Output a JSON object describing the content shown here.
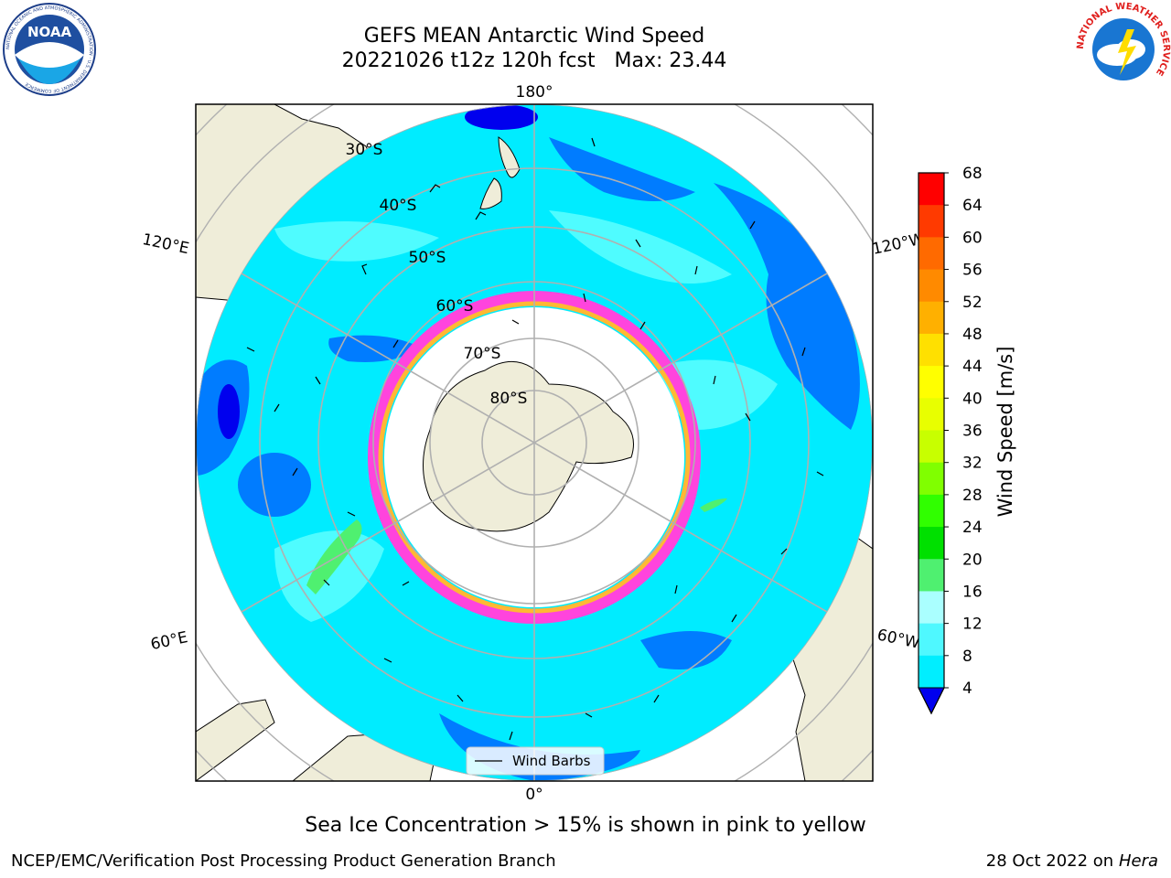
{
  "header": {
    "title_line1": "GEFS MEAN Antarctic Wind Speed",
    "title_line2": "20221026 t12z 120h fcst   Max: 23.44"
  },
  "logos": {
    "left": {
      "text": "NOAA",
      "ring_text": "NATIONAL OCEANIC AND ATMOSPHERIC ADMINISTRATION · U.S. DEPARTMENT OF COMMERCE"
    },
    "right": {
      "ring_text": "NATIONAL WEATHER SERVICE"
    }
  },
  "map": {
    "longitude_labels": {
      "top": "180°",
      "bottom": "0°",
      "left_upper": "120°E",
      "right_upper": "120°W",
      "left_lower": "60°E",
      "right_lower": "60°W"
    },
    "latitude_labels": [
      "30°S",
      "40°S",
      "50°S",
      "60°S",
      "70°S",
      "80°S"
    ],
    "legend_label": "Wind Barbs",
    "colors": {
      "land": "#efedd9",
      "ocean_low": "#007cff",
      "ocean_mid": "#00ecff",
      "ocean_high": "#4ffcff",
      "sea_ice_pink": "#ff44dd",
      "sea_ice_yellow": "#ffb833",
      "grid": "#b0b0b0"
    }
  },
  "colorbar": {
    "label": "Wind Speed [m/s]",
    "ticks": [
      "68",
      "64",
      "60",
      "56",
      "52",
      "48",
      "44",
      "40",
      "36",
      "32",
      "28",
      "24",
      "20",
      "16",
      "12",
      "8",
      "4"
    ],
    "colors": [
      "#ff0000",
      "#ff3a00",
      "#ff6a00",
      "#ff8a00",
      "#ffb000",
      "#ffe000",
      "#ffff00",
      "#e8ff00",
      "#c8ff00",
      "#80ff00",
      "#30ff00",
      "#00e000",
      "#4ff070",
      "#aaffff",
      "#4ff8ff",
      "#00eeff",
      "#0080ff"
    ],
    "under_color": "#0000ee"
  },
  "caption": "Sea Ice Concentration > 15% is shown in pink to yellow",
  "footer": {
    "left": "NCEP/EMC/Verification Post Processing Product Generation Branch",
    "right_prefix": "28 Oct 2022 on ",
    "right_host": "Hera"
  }
}
